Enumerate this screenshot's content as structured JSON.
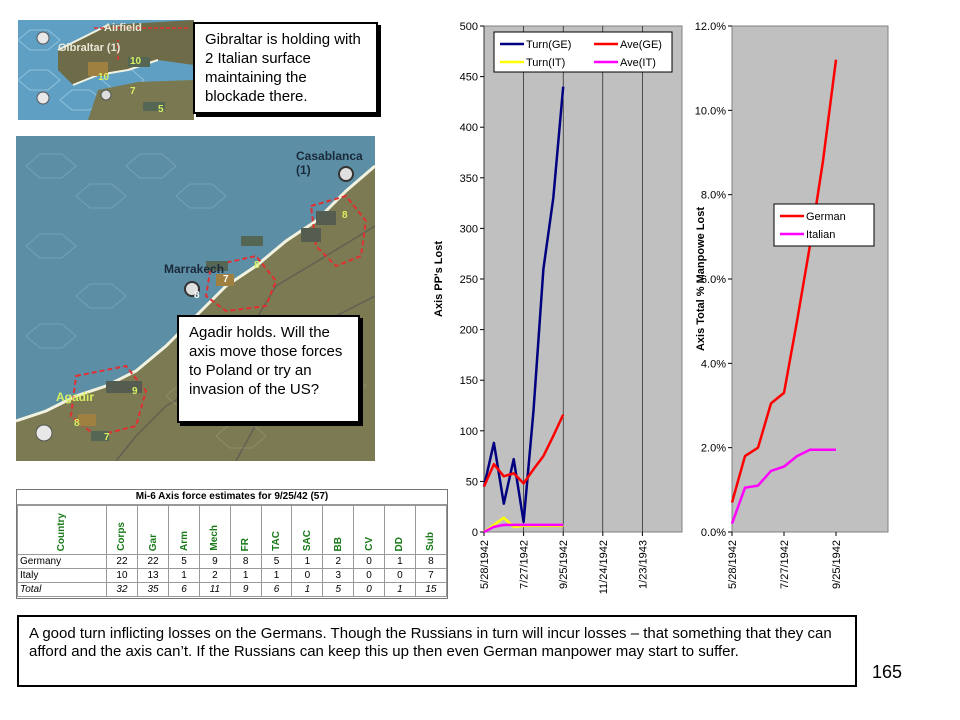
{
  "maps": {
    "gibraltar": {
      "labels": [
        "Gibraltar (1)",
        "Airfield",
        "10",
        "10",
        "7",
        "5"
      ],
      "callout": "Gibraltar is holding with 2 Italian surface maintaining the blockade there."
    },
    "morocco": {
      "labels": [
        "Casablanca (1)",
        "Marrakech",
        "Agadir",
        "8",
        "7",
        "8",
        "8",
        "9",
        "8",
        "7"
      ],
      "callout": "Agadir holds.  Will the axis move those forces to Poland or try an invasion of the US?"
    }
  },
  "forces_table": {
    "title": "Mi-6 Axis force estimates for 9/25/42 (57)",
    "columns": [
      "Country",
      "Corps",
      "Gar",
      "Arm",
      "Mech",
      "FR",
      "TAC",
      "SAC",
      "BB",
      "CV",
      "DD",
      "Sub"
    ],
    "rows": [
      {
        "name": "Germany",
        "values": [
          "22",
          "22",
          "5",
          "9",
          "8",
          "5",
          "1",
          "2",
          "0",
          "1",
          "8"
        ]
      },
      {
        "name": "Italy",
        "values": [
          "10",
          "13",
          "1",
          "2",
          "1",
          "1",
          "0",
          "3",
          "0",
          "0",
          "7"
        ]
      },
      {
        "name": "Total",
        "values": [
          "32",
          "35",
          "6",
          "11",
          "9",
          "6",
          "1",
          "5",
          "0",
          "1",
          "15"
        ]
      }
    ]
  },
  "chart_data": [
    {
      "type": "line",
      "ylabel": "Axis PP's Lost",
      "ylim": [
        0,
        500
      ],
      "yticks": [
        "0",
        "50",
        "100",
        "150",
        "200",
        "250",
        "300",
        "350",
        "400",
        "450",
        "500"
      ],
      "xlim": [
        "5/28/1942",
        "3/24/1943"
      ],
      "xticks": [
        "5/28/1942",
        "7/27/1942",
        "9/25/1942",
        "11/24/1942",
        "1/23/1943"
      ],
      "legend_position": "top",
      "grid": true,
      "series": [
        {
          "name": "Turn(GE)",
          "color": "#000080",
          "x": [
            "5/28/1942",
            "6/12/1942",
            "6/27/1942",
            "7/12/1942",
            "7/27/1942",
            "8/11/1942",
            "8/26/1942",
            "9/10/1942",
            "9/25/1942"
          ],
          "values": [
            45,
            88,
            28,
            72,
            10,
            120,
            260,
            330,
            440
          ]
        },
        {
          "name": "Ave(GE)",
          "color": "#ff0000",
          "x": [
            "5/28/1942",
            "6/12/1942",
            "6/27/1942",
            "7/12/1942",
            "7/27/1942",
            "8/11/1942",
            "8/26/1942",
            "9/10/1942",
            "9/25/1942"
          ],
          "values": [
            45,
            67,
            55,
            58,
            48,
            62,
            75,
            95,
            116
          ]
        },
        {
          "name": "Turn(IT)",
          "color": "#ffff00",
          "x": [
            "5/28/1942",
            "6/12/1942",
            "6/27/1942",
            "7/12/1942",
            "7/27/1942",
            "8/11/1942",
            "8/26/1942",
            "9/10/1942",
            "9/25/1942"
          ],
          "values": [
            0,
            7,
            14,
            5,
            6,
            6,
            6,
            6,
            6
          ]
        },
        {
          "name": "Ave(IT)",
          "color": "#ff00ff",
          "x": [
            "5/28/1942",
            "6/12/1942",
            "6/27/1942",
            "7/12/1942",
            "7/27/1942",
            "8/11/1942",
            "8/26/1942",
            "9/10/1942",
            "9/25/1942"
          ],
          "values": [
            0,
            5,
            7,
            7,
            7,
            7,
            7,
            7,
            7
          ]
        }
      ]
    },
    {
      "type": "line",
      "ylabel": "Axis Total % Manpowe Lost",
      "ylim": [
        0,
        12
      ],
      "yticks": [
        "0.0%",
        "2.0%",
        "4.0%",
        "6.0%",
        "8.0%",
        "10.0%",
        "12.0%"
      ],
      "xlim": [
        "5/28/1942",
        "11/24/1942"
      ],
      "xticks": [
        "5/28/1942",
        "7/27/1942",
        "9/25/1942"
      ],
      "legend_position": "middle",
      "grid": false,
      "series": [
        {
          "name": "German",
          "color": "#ff0000",
          "x": [
            "5/28/1942",
            "6/12/1942",
            "6/27/1942",
            "7/12/1942",
            "7/27/1942",
            "8/11/1942",
            "8/26/1942",
            "9/10/1942",
            "9/25/1942"
          ],
          "values": [
            0.7,
            1.8,
            2.0,
            3.05,
            3.3,
            5.0,
            6.8,
            8.8,
            11.2
          ]
        },
        {
          "name": "Italian",
          "color": "#ff00ff",
          "x": [
            "5/28/1942",
            "6/12/1942",
            "6/27/1942",
            "7/12/1942",
            "7/27/1942",
            "8/11/1942",
            "8/26/1942",
            "9/10/1942",
            "9/25/1942"
          ],
          "values": [
            0.2,
            1.05,
            1.1,
            1.45,
            1.55,
            1.8,
            1.95,
            1.95,
            1.95
          ]
        }
      ]
    }
  ],
  "bottom_text": "A good turn inflicting losses on the Germans.  Though the Russians in turn will incur losses – that something that they can afford and the axis can’t.  If the Russians can keep this up then even German manpower may start to suffer.",
  "page_number": "165",
  "colors": {
    "sea": "#5e8fa8",
    "land": "#7c7a52",
    "chart_bg": "#c0c0c0",
    "unit_green": "#c8e85a"
  }
}
